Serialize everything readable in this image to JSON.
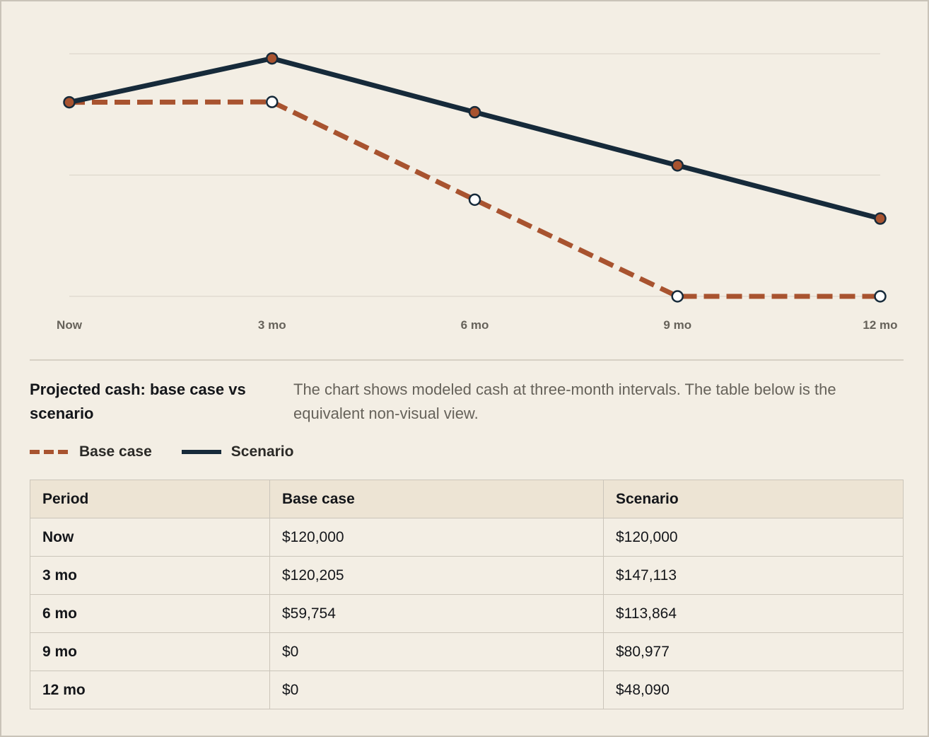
{
  "chart_data": {
    "type": "line",
    "x": [
      "Now",
      "3 mo",
      "6 mo",
      "9 mo",
      "12 mo"
    ],
    "ylim": [
      0,
      150000
    ],
    "grid": true,
    "series": [
      {
        "name": "Base case",
        "values": [
          120000,
          120205,
          59754,
          0,
          0
        ],
        "color": "#a8532f",
        "style": "dashed",
        "markers": "open"
      },
      {
        "name": "Scenario",
        "values": [
          120000,
          147113,
          113864,
          80977,
          48090
        ],
        "color": "#162a3a",
        "style": "solid",
        "markers": "filled"
      }
    ],
    "title": "Projected cash: base case vs scenario",
    "description": "The chart shows modeled cash at three-month intervals. The table below is the equivalent non-visual view."
  },
  "legend": {
    "base_label": "Base case",
    "scenario_label": "Scenario"
  },
  "table": {
    "headers": [
      "Period",
      "Base case",
      "Scenario"
    ],
    "rows": [
      [
        "Now",
        "$120,000",
        "$120,000"
      ],
      [
        "3 mo",
        "$120,205",
        "$147,113"
      ],
      [
        "6 mo",
        "$59,754",
        "$113,864"
      ],
      [
        "9 mo",
        "$0",
        "$80,977"
      ],
      [
        "12 mo",
        "$0",
        "$48,090"
      ]
    ]
  }
}
